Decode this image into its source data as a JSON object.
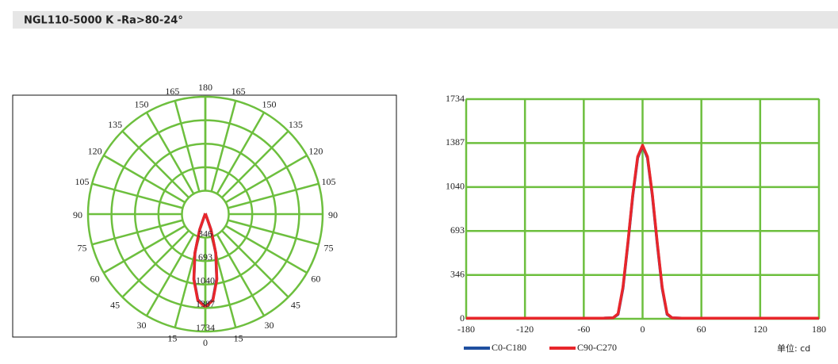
{
  "title": "NGL110-5000 K -Ra>80-24°",
  "chart_data": [
    {
      "type": "polar",
      "theta": [
        0,
        5,
        10,
        15,
        20,
        25,
        30,
        40,
        90,
        180
      ],
      "theta_ticks": [
        0,
        15,
        30,
        45,
        60,
        75,
        90,
        105,
        120,
        135,
        150,
        165,
        180
      ],
      "rlim": [
        0,
        1734
      ],
      "rticks": [
        346,
        693,
        1040,
        1387,
        1734
      ],
      "grid": true,
      "grid_color": "#6dbf3e",
      "series": [
        {
          "color": "#1f4fa0",
          "values": [
            1365,
            1270,
            970,
            590,
            240,
            35,
            8,
            5,
            5,
            5
          ]
        },
        {
          "color": "#e8262b",
          "values": [
            1370,
            1280,
            980,
            600,
            250,
            40,
            8,
            5,
            5,
            5
          ]
        }
      ]
    },
    {
      "type": "line",
      "x": [
        -180,
        -90,
        -40,
        -30,
        -25,
        -20,
        -15,
        -10,
        -5,
        0,
        5,
        10,
        15,
        20,
        25,
        30,
        40,
        90,
        180
      ],
      "xlim": [
        -180,
        180
      ],
      "xticks": [
        -180,
        -120,
        -60,
        0,
        60,
        120,
        180
      ],
      "ylim": [
        0,
        1734
      ],
      "yticks": [
        0,
        346,
        693,
        1040,
        1387,
        1734
      ],
      "grid": true,
      "grid_color": "#6dbf3e",
      "unit_label": "单位: cd",
      "series": [
        {
          "name": "C0-C180",
          "color": "#1f4fa0",
          "values": [
            5,
            5,
            5,
            8,
            35,
            240,
            590,
            970,
            1270,
            1365,
            1270,
            970,
            590,
            240,
            35,
            8,
            5,
            5,
            5
          ]
        },
        {
          "name": "C90-C270",
          "color": "#e8262b",
          "values": [
            5,
            5,
            5,
            8,
            40,
            250,
            600,
            980,
            1280,
            1370,
            1280,
            980,
            600,
            250,
            40,
            8,
            5,
            5,
            5
          ]
        }
      ]
    }
  ]
}
